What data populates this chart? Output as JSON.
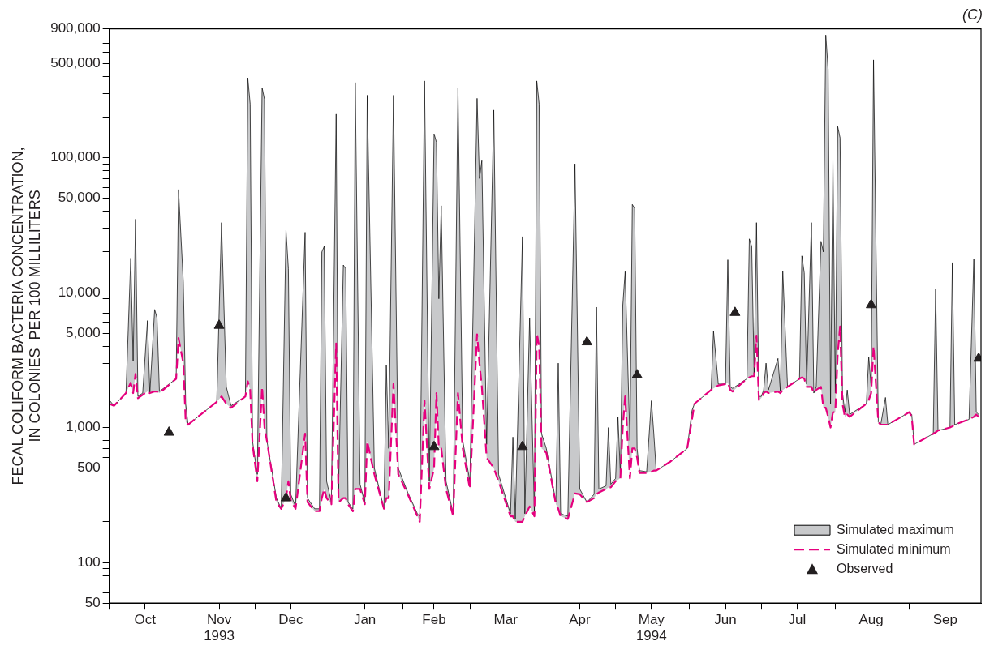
{
  "chart_data": {
    "type": "area",
    "title": "(C)",
    "ylabel": "FECAL COLIFORM BACTERIA CONCENTRATION,\nIN COLONIES  PER 100 MILLILITERS",
    "x": [
      "1993-10-01",
      "1993-10-03",
      "1993-10-08",
      "1993-10-10",
      "1993-10-11",
      "1993-10-12",
      "1993-10-13",
      "1993-10-15",
      "1993-10-17",
      "1993-10-18",
      "1993-10-20",
      "1993-10-21",
      "1993-10-22",
      "1993-10-29",
      "1993-10-30",
      "1993-11-01",
      "1993-11-02",
      "1993-11-03",
      "1993-11-15",
      "1993-11-17",
      "1993-11-19",
      "1993-11-21",
      "1993-11-27",
      "1993-11-28",
      "1993-11-29",
      "1993-11-30",
      "1993-12-02",
      "1993-12-04",
      "1993-12-05",
      "1993-12-06",
      "1993-12-10",
      "1993-12-12",
      "1993-12-14",
      "1993-12-15",
      "1993-12-16",
      "1993-12-18",
      "1993-12-22",
      "1993-12-23",
      "1993-12-26",
      "1993-12-28",
      "1993-12-29",
      "1993-12-30",
      "1993-12-31",
      "1994-01-02",
      "1994-01-04",
      "1994-01-05",
      "1994-01-07",
      "1994-01-08",
      "1994-01-09",
      "1994-01-11",
      "1994-01-12",
      "1994-01-14",
      "1994-01-16",
      "1994-01-17",
      "1994-01-20",
      "1994-01-24",
      "1994-01-25",
      "1994-01-26",
      "1994-01-28",
      "1994-01-30",
      "1994-02-03",
      "1994-02-07",
      "1994-02-08",
      "1994-02-10",
      "1994-02-12",
      "1994-02-14",
      "1994-02-15",
      "1994-02-16",
      "1994-02-17",
      "1994-02-19",
      "1994-02-22",
      "1994-02-24",
      "1994-02-26",
      "1994-03-01",
      "1994-03-04",
      "1994-03-05",
      "1994-03-06",
      "1994-03-08",
      "1994-03-11",
      "1994-03-13",
      "1994-03-18",
      "1994-03-19",
      "1994-03-20",
      "1994-03-23",
      "1994-03-24",
      "1994-03-26",
      "1994-03-28",
      "1994-03-29",
      "1994-03-30",
      "1994-03-31",
      "1994-04-02",
      "1994-04-06",
      "1994-04-07",
      "1994-04-08",
      "1994-04-11",
      "1994-04-14",
      "1994-04-16",
      "1994-04-19",
      "1994-04-22",
      "1994-04-23",
      "1994-04-24",
      "1994-04-27",
      "1994-04-28",
      "1994-04-29",
      "1994-05-01",
      "1994-05-02",
      "1994-05-03",
      "1994-05-04",
      "1994-05-05",
      "1994-05-07",
      "1994-05-08",
      "1994-05-09",
      "1994-05-10",
      "1994-05-11",
      "1994-05-14",
      "1994-05-16",
      "1994-05-17",
      "1994-05-18",
      "1994-05-24",
      "1994-05-31",
      "1994-06-02",
      "1994-06-03",
      "1994-06-10",
      "1994-06-11",
      "1994-06-13",
      "1994-06-16",
      "1994-06-17",
      "1994-06-18",
      "1994-06-19",
      "1994-06-25",
      "1994-06-26",
      "1994-06-27",
      "1994-06-28",
      "1994-06-29",
      "1994-06-30",
      "1994-07-01",
      "1994-07-02",
      "1994-07-03",
      "1994-07-04",
      "1994-07-08",
      "1994-07-09",
      "1994-07-10",
      "1994-07-12",
      "1994-07-17",
      "1994-07-18",
      "1994-07-19",
      "1994-07-20",
      "1994-07-22",
      "1994-07-23",
      "1994-07-24",
      "1994-07-26",
      "1994-07-27",
      "1994-07-28",
      "1994-07-29",
      "1994-07-30",
      "1994-07-31",
      "1994-08-01",
      "1994-08-02",
      "1994-08-03",
      "1994-08-04",
      "1994-08-05",
      "1994-08-06",
      "1994-08-07",
      "1994-08-14",
      "1994-08-15",
      "1994-08-16",
      "1994-08-17",
      "1994-08-19",
      "1994-08-20",
      "1994-08-22",
      "1994-08-23",
      "1994-09-01",
      "1994-09-02",
      "1994-09-03",
      "1994-09-11",
      "1994-09-12",
      "1994-09-13",
      "1994-09-18",
      "1994-09-19",
      "1994-09-20",
      "1994-09-26",
      "1994-09-28",
      "1994-09-29",
      "1994-09-30"
    ],
    "series": [
      {
        "name": "Simulated maximum",
        "color": "#c8c9cb",
        "values": [
          1600,
          1450,
          1800,
          18000,
          3100,
          35000,
          1700,
          1800,
          6200,
          1800,
          7500,
          6500,
          1850,
          2300,
          58000,
          12000,
          1500,
          1050,
          1550,
          33000,
          2000,
          1450,
          1700,
          390000,
          250000,
          790,
          450,
          330000,
          270000,
          800,
          300,
          250,
          29000,
          15000,
          320,
          260,
          28000,
          300,
          250,
          250,
          20000,
          22000,
          400,
          280,
          210000,
          350,
          16000,
          15000,
          280,
          250,
          360000,
          380,
          280,
          290000,
          500,
          250,
          2900,
          700,
          290000,
          500,
          330,
          230,
          220,
          370000,
          400,
          150000,
          130000,
          9000,
          44000,
          400,
          230,
          330000,
          800,
          400,
          275000,
          70000,
          95000,
          750,
          225000,
          450,
          230,
          850,
          210,
          26000,
          230,
          6500,
          230,
          370000,
          250000,
          900,
          700,
          280,
          3000,
          230,
          220,
          90000,
          350,
          280,
          320,
          7800,
          350,
          370,
          1000,
          380,
          420,
          1200,
          450,
          8000,
          14300,
          800,
          45000,
          42000,
          700,
          480,
          470,
          1580,
          900,
          480,
          560,
          700,
          1340,
          1500,
          1900,
          5200,
          2100,
          2100,
          17500,
          2000,
          1950,
          2300,
          25000,
          22000,
          2500,
          33000,
          1700,
          1700,
          1900,
          3000,
          1900,
          3250,
          1850,
          14500,
          2000,
          2300,
          18700,
          14000,
          2100,
          33000,
          1800,
          2000,
          24000,
          20000,
          810000,
          450000,
          1500,
          96000,
          1800,
          170000,
          140000,
          1800,
          1300,
          1900,
          1250,
          1500,
          3350,
          2000,
          530000,
          1100,
          1050,
          1670,
          1050,
          1300,
          1250,
          750,
          900,
          10700,
          950,
          1000,
          16700,
          1050,
          1150,
          17800,
          1300,
          1250
        ]
      },
      {
        "name": "Simulated minimum",
        "type": "line",
        "color": "#e6007e",
        "line_style": "dashed",
        "values": [
          1500,
          1450,
          1800,
          2150,
          1800,
          2500,
          1650,
          1750,
          1850,
          1800,
          1850,
          1850,
          1800,
          2300,
          4600,
          3000,
          1100,
          1050,
          1550,
          1700,
          1500,
          1400,
          1700,
          2200,
          1900,
          750,
          400,
          2000,
          1000,
          800,
          280,
          250,
          300,
          400,
          290,
          250,
          900,
          280,
          240,
          240,
          300,
          350,
          300,
          270,
          4200,
          280,
          300,
          300,
          270,
          240,
          350,
          350,
          270,
          790,
          450,
          250,
          300,
          300,
          2100,
          450,
          320,
          220,
          200,
          1580,
          350,
          500,
          1800,
          700,
          700,
          350,
          220,
          1800,
          700,
          350,
          4900,
          3000,
          2000,
          600,
          500,
          400,
          220,
          220,
          200,
          200,
          220,
          260,
          220,
          5000,
          4000,
          700,
          650,
          270,
          250,
          220,
          210,
          325,
          320,
          280,
          300,
          320,
          330,
          350,
          360,
          360,
          400,
          410,
          420,
          1000,
          1700,
          420,
          700,
          700,
          600,
          460,
          460,
          470,
          480,
          480,
          560,
          700,
          1150,
          1500,
          1900,
          1950,
          2050,
          2100,
          2150,
          1900,
          1850,
          2300,
          2350,
          2400,
          2400,
          4800,
          1600,
          1650,
          1800,
          1850,
          1800,
          1850,
          1800,
          1900,
          2000,
          2300,
          2350,
          2300,
          2000,
          2000,
          1800,
          1900,
          2000,
          1400,
          1400,
          1200,
          1000,
          1300,
          1300,
          3500,
          5600,
          1500,
          1200,
          1250,
          1200,
          1500,
          1600,
          1800,
          4000,
          1100,
          1050,
          1050,
          1050,
          1300,
          1200,
          750,
          900,
          920,
          950,
          1000,
          1020,
          1050,
          1150,
          1200,
          1250,
          1200
        ]
      },
      {
        "name": "Observed",
        "type": "scatter",
        "color": "#231f20",
        "marker": "triangle",
        "x": [
          "1993-10-26",
          "1993-11-16",
          "1993-12-14",
          "1994-02-14",
          "1994-03-23",
          "1994-04-19",
          "1994-05-10",
          "1994-06-20",
          "1994-08-16",
          "1994-09-30"
        ],
        "values": [
          920,
          5700,
          300,
          720,
          720,
          4300,
          2450,
          7100,
          8100,
          3250
        ]
      }
    ],
    "log": "y",
    "grid": false,
    "legend": "bottom right",
    "xlim": [
      "1993-10-01",
      "1994-10-01"
    ],
    "xticks": [
      {
        "value": "1993-10-01",
        "label": null
      },
      {
        "value": "1993-10-16",
        "label": "Oct"
      },
      {
        "value": "1993-11-01",
        "label": null
      },
      {
        "value": "1993-11-16",
        "label": "Nov\n1993"
      },
      {
        "value": "1993-12-01",
        "label": null
      },
      {
        "value": "1993-12-16",
        "label": "Dec"
      },
      {
        "value": "1994-01-01",
        "label": null
      },
      {
        "value": "1994-01-16",
        "label": "Jan"
      },
      {
        "value": "1994-02-01",
        "label": null
      },
      {
        "value": "1994-02-14",
        "label": "Feb"
      },
      {
        "value": "1994-03-01",
        "label": null
      },
      {
        "value": "1994-03-16",
        "label": "Mar"
      },
      {
        "value": "1994-04-01",
        "label": null
      },
      {
        "value": "1994-04-16",
        "label": "Apr"
      },
      {
        "value": "1994-05-01",
        "label": null
      },
      {
        "value": "1994-05-16",
        "label": "May\n1994"
      },
      {
        "value": "1994-06-01",
        "label": null
      },
      {
        "value": "1994-06-16",
        "label": "Jun"
      },
      {
        "value": "1994-07-01",
        "label": null
      },
      {
        "value": "1994-07-16",
        "label": "Jul"
      },
      {
        "value": "1994-08-01",
        "label": null
      },
      {
        "value": "1994-08-16",
        "label": "Aug"
      },
      {
        "value": "1994-09-01",
        "label": null
      },
      {
        "value": "1994-09-16",
        "label": "Sep"
      }
    ],
    "ylim": [
      50,
      900000
    ],
    "yticks": [
      50,
      {
        "value": 60,
        "label": null
      },
      {
        "value": 70,
        "label": null
      },
      {
        "value": 80,
        "label": null
      },
      {
        "value": 90,
        "label": null
      },
      100,
      {
        "value": 200,
        "label": null
      },
      {
        "value": 300,
        "label": null
      },
      {
        "value": 400,
        "label": null
      },
      500,
      {
        "value": 600,
        "label": null
      },
      {
        "value": 700,
        "label": null
      },
      {
        "value": 800,
        "label": null
      },
      {
        "value": 900,
        "label": null
      },
      {
        "value": 1000,
        "label": "1,000"
      },
      {
        "value": 2000,
        "label": null
      },
      {
        "value": 3000,
        "label": null
      },
      {
        "value": 4000,
        "label": null
      },
      {
        "value": 5000,
        "label": "5,000"
      },
      {
        "value": 6000,
        "label": null
      },
      {
        "value": 7000,
        "label": null
      },
      {
        "value": 8000,
        "label": null
      },
      {
        "value": 9000,
        "label": null
      },
      {
        "value": 10000,
        "label": "10,000"
      },
      {
        "value": 20000,
        "label": null
      },
      {
        "value": 30000,
        "label": null
      },
      {
        "value": 40000,
        "label": null
      },
      {
        "value": 50000,
        "label": "50,000"
      },
      {
        "value": 60000,
        "label": null
      },
      {
        "value": 70000,
        "label": null
      },
      {
        "value": 80000,
        "label": null
      },
      {
        "value": 90000,
        "label": null
      },
      {
        "value": 100000,
        "label": "100,000"
      },
      {
        "value": 200000,
        "label": null
      },
      {
        "value": 300000,
        "label": null
      },
      {
        "value": 400000,
        "label": null
      },
      {
        "value": 500000,
        "label": "500,000"
      },
      {
        "value": 600000,
        "label": null
      },
      {
        "value": 700000,
        "label": null
      },
      {
        "value": 800000,
        "label": null
      },
      {
        "value": 900000,
        "label": "900,000"
      }
    ]
  }
}
